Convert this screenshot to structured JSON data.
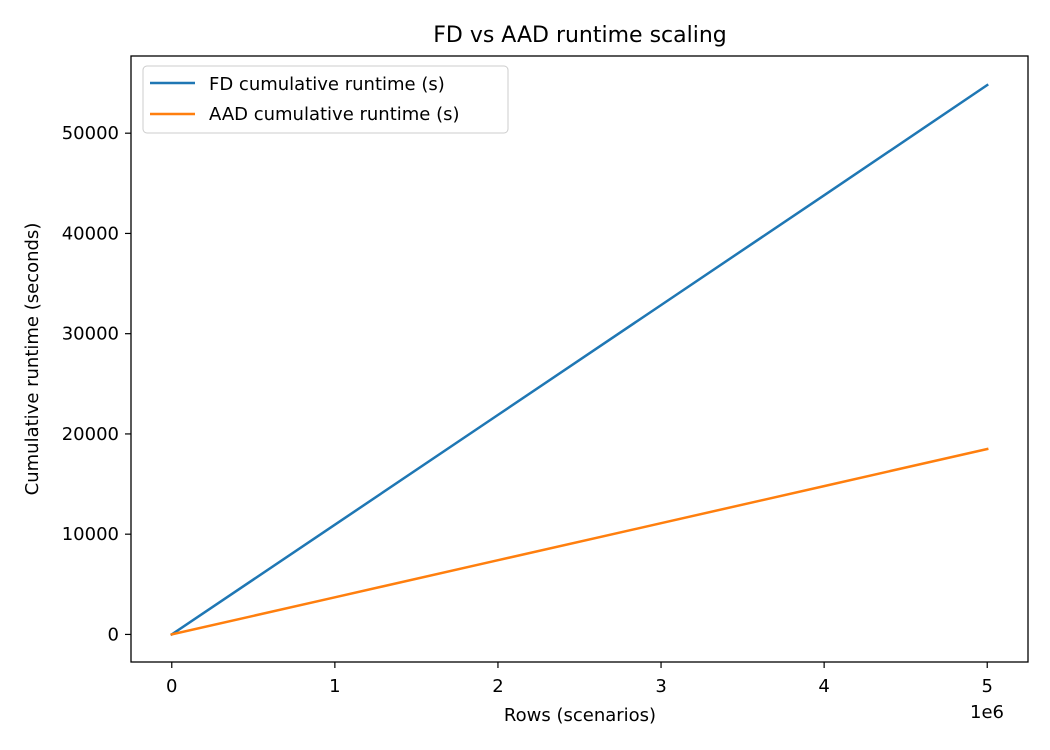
{
  "chart_data": {
    "type": "line",
    "title": "FD vs AAD runtime scaling",
    "xlabel": "Rows (scenarios)",
    "ylabel": "Cumulative runtime (seconds)",
    "x_offset_label": "1e6",
    "xlim": [
      -250000,
      5250000
    ],
    "ylim": [
      -2750,
      57700
    ],
    "x_ticks": [
      0,
      1000000,
      2000000,
      3000000,
      4000000,
      5000000
    ],
    "x_tick_labels": [
      "0",
      "1",
      "2",
      "3",
      "4",
      "5"
    ],
    "y_ticks": [
      0,
      10000,
      20000,
      30000,
      40000,
      50000
    ],
    "y_tick_labels": [
      "0",
      "10000",
      "20000",
      "30000",
      "40000",
      "50000"
    ],
    "grid": false,
    "legend_position": "top-left",
    "series": [
      {
        "name": "FD cumulative runtime (s)",
        "color": "#1f77b4",
        "x": [
          0,
          1000000,
          2000000,
          3000000,
          4000000,
          5000000
        ],
        "y": [
          0,
          10950,
          21900,
          32850,
          43800,
          54800
        ]
      },
      {
        "name": "AAD cumulative runtime (s)",
        "color": "#ff7f0e",
        "x": [
          0,
          1000000,
          2000000,
          3000000,
          4000000,
          5000000
        ],
        "y": [
          0,
          3700,
          7400,
          11100,
          14800,
          18500
        ]
      }
    ]
  }
}
